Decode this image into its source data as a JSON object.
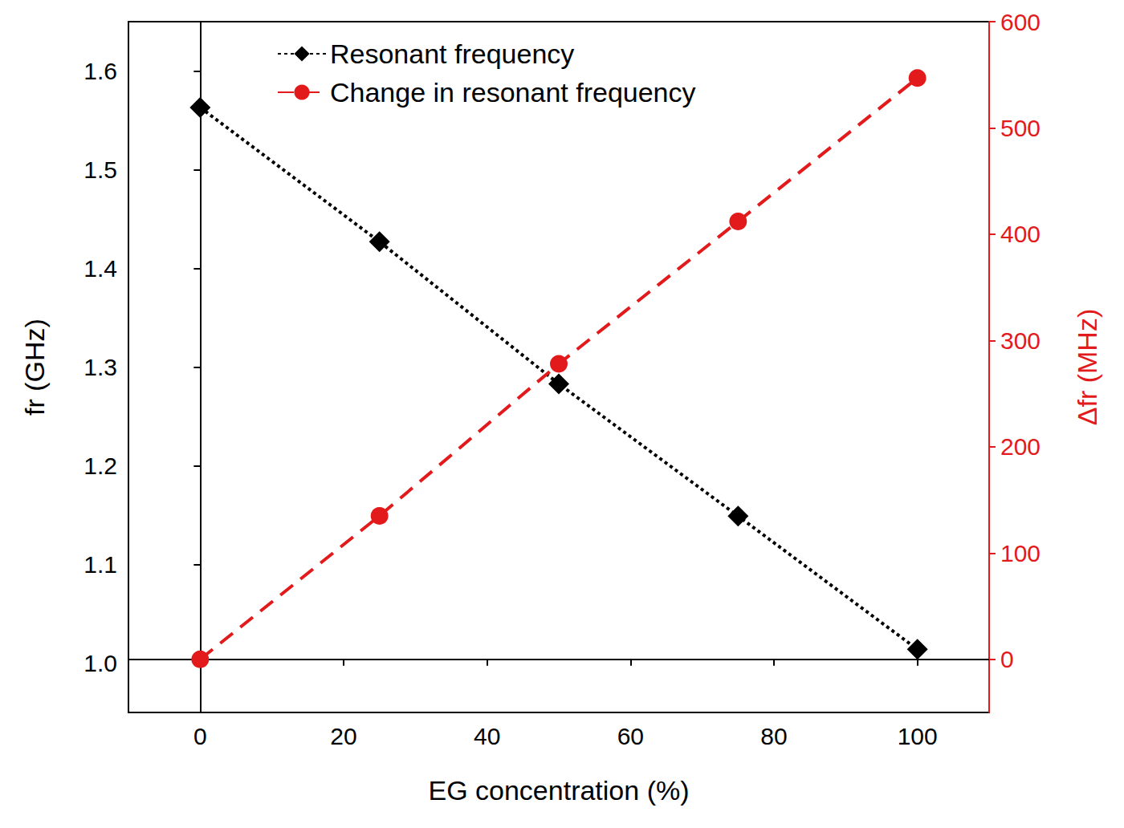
{
  "chart_data": {
    "type": "line",
    "x_label": "EG concentration (%)",
    "y_label": "fr (GHz)",
    "y2_label": "Δfr (MHz)",
    "x": [
      0,
      25,
      50,
      75,
      100
    ],
    "xlim": [
      -10,
      110
    ],
    "xticks": [
      0,
      20,
      40,
      60,
      80,
      100
    ],
    "ylim": [
      0.95,
      1.65
    ],
    "yticks": [
      {
        "value": 1.0,
        "label": "1.0"
      },
      1.1,
      1.2,
      1.3,
      1.4,
      1.5,
      1.6
    ],
    "y2lim": [
      -50,
      600
    ],
    "y2ticks": [
      0,
      100,
      200,
      300,
      400,
      500,
      600
    ],
    "grid": false,
    "legend": "top",
    "series": [
      {
        "name": "Resonant frequency",
        "color": "#000000",
        "marker": "diamond",
        "line_style": "dotted",
        "values": [
          1.563,
          1.427,
          1.283,
          1.149,
          1.014
        ]
      },
      {
        "name": "Change in resonant frequency",
        "color": "#e31a1c",
        "marker": "circle",
        "line_style": "dashed",
        "axis": "y2",
        "values": [
          0,
          135,
          278,
          412,
          547
        ]
      }
    ]
  }
}
